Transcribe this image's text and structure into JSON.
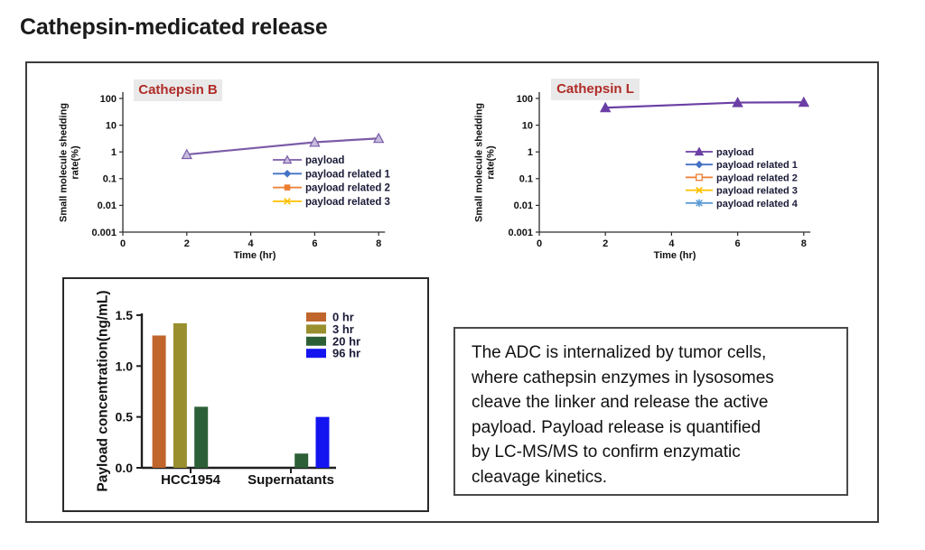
{
  "page": {
    "title": "Cathepsin-medicated release"
  },
  "colors": {
    "badge_background": "#e9e9e9",
    "badge_text_red": "#b02c28",
    "axis_color": "#2c2c2c",
    "legend_text": "#1a1a38"
  },
  "text_box": {
    "text": "The ADC is internalized by tumor cells,\nwhere cathepsin enzymes in lysosomes\ncleave the linker and release the active\npayload. Payload release is quantified\nby LC-MS/MS to confirm enzymatic\ncleavage kinetics."
  },
  "chart_data": [
    {
      "id": "cathepsin-b",
      "type": "line",
      "title": "Cathepsin B",
      "xlabel": "Time (hr)",
      "ylabel": "Small molecule shedding\nrate(%)",
      "y_scale": "log",
      "ylim": [
        0.001,
        100
      ],
      "xlim": [
        0,
        8.2
      ],
      "x_ticks": [
        0,
        2,
        4,
        6,
        8
      ],
      "y_ticks": [
        {
          "value": 100,
          "label": "100"
        },
        {
          "value": 10,
          "label": "10"
        },
        {
          "value": 1,
          "label": "1"
        },
        {
          "value": 0.1,
          "label": "0.1"
        },
        {
          "value": 0.01,
          "label": "0.01"
        },
        {
          "value": 0.001,
          "label": "0.001"
        }
      ],
      "legend_position": "inside-right",
      "series": [
        {
          "name": "payload",
          "color": "#7b5ca8",
          "marker": "triangle-open",
          "x": [
            2,
            6,
            8
          ],
          "y": [
            0.8,
            2.3,
            3.2
          ]
        },
        {
          "name": "payload related 1",
          "color": "#4472c4",
          "marker": "diamond",
          "x": [],
          "y": []
        },
        {
          "name": "payload related 2",
          "color": "#ed7d31",
          "marker": "square",
          "x": [],
          "y": []
        },
        {
          "name": "payload related 3",
          "color": "#ffc000",
          "marker": "x",
          "x": [],
          "y": []
        }
      ]
    },
    {
      "id": "cathepsin-l",
      "type": "line",
      "title": "Cathepsin L",
      "xlabel": "Time (hr)",
      "ylabel": "Small molecule shedding\nrate(%)",
      "y_scale": "log",
      "ylim": [
        0.001,
        100
      ],
      "xlim": [
        0,
        8.2
      ],
      "x_ticks": [
        0,
        2,
        4,
        6,
        8
      ],
      "y_ticks": [
        {
          "value": 100,
          "label": "100"
        },
        {
          "value": 10,
          "label": "10"
        },
        {
          "value": 1,
          "label": "1"
        },
        {
          "value": 0.1,
          "label": "0.1"
        },
        {
          "value": 0.01,
          "label": "0.01"
        },
        {
          "value": 0.001,
          "label": "0.001"
        }
      ],
      "legend_position": "inside-right",
      "series": [
        {
          "name": "payload",
          "color": "#6b3fa5",
          "marker": "triangle",
          "x": [
            2,
            6,
            8
          ],
          "y": [
            45,
            70,
            72
          ]
        },
        {
          "name": "payload related 1",
          "color": "#4472c4",
          "marker": "diamond",
          "x": [],
          "y": []
        },
        {
          "name": "payload related 2",
          "color": "#ed7d31",
          "marker": "square-open",
          "x": [],
          "y": []
        },
        {
          "name": "payload related 3",
          "color": "#ffc000",
          "marker": "x",
          "x": [],
          "y": []
        },
        {
          "name": "payload related 4",
          "color": "#5b9bd5",
          "marker": "asterisk",
          "x": [],
          "y": []
        }
      ]
    },
    {
      "id": "payload-bar",
      "type": "bar",
      "title": "",
      "ylabel": "Payload concentration(ng/mL)",
      "ylim": [
        0,
        1.5
      ],
      "categories": [
        "HCC1954",
        "Supernatants"
      ],
      "y_ticks": [
        {
          "value": 1.5,
          "label": "1.5"
        },
        {
          "value": 1.0,
          "label": "1.0"
        },
        {
          "value": 0.5,
          "label": "0.5"
        },
        {
          "value": 0.0,
          "label": "0.0"
        }
      ],
      "legend_position": "inside-right",
      "series": [
        {
          "name": "0 hr",
          "color": "#c0652b",
          "values": [
            1.3,
            0
          ]
        },
        {
          "name": "3 hr",
          "color": "#9a8f2f",
          "values": [
            1.42,
            0
          ]
        },
        {
          "name": "20 hr",
          "color": "#2d5f36",
          "values": [
            0.6,
            0.14
          ]
        },
        {
          "name": "96 hr",
          "color": "#1414f0",
          "values": [
            0,
            0.5
          ]
        }
      ]
    }
  ]
}
